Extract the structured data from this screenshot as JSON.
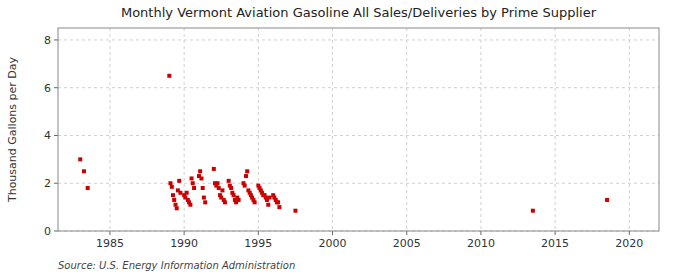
{
  "chart_data": {
    "type": "scatter",
    "title": "Monthly Vermont Aviation Gasoline All Sales/Deliveries by Prime Supplier",
    "ylabel": "Thousand Gallons per Day",
    "annotations": [
      "Source: U.S. Energy Information Administration"
    ],
    "color": "#cc0000",
    "marker": "square",
    "grid": true,
    "xlim": [
      1981.5,
      2022
    ],
    "ylim": [
      0,
      8.5
    ],
    "xticks": [
      1985,
      1990,
      1995,
      2000,
      2005,
      2010,
      2015,
      2020
    ],
    "yticks": [
      0,
      2,
      4,
      6,
      8
    ],
    "x": [
      1983.0,
      1983.25,
      1983.5,
      1989.0,
      1989.08,
      1989.17,
      1989.25,
      1989.33,
      1989.42,
      1989.5,
      1989.58,
      1989.67,
      1989.75,
      1990.0,
      1990.08,
      1990.17,
      1990.25,
      1990.33,
      1990.42,
      1990.5,
      1990.58,
      1990.67,
      1991.0,
      1991.08,
      1991.17,
      1991.25,
      1991.33,
      1991.42,
      1992.0,
      1992.08,
      1992.17,
      1992.25,
      1992.33,
      1992.42,
      1992.5,
      1992.58,
      1992.67,
      1992.75,
      1993.0,
      1993.08,
      1993.17,
      1993.25,
      1993.33,
      1993.42,
      1993.5,
      1993.58,
      1993.67,
      1994.0,
      1994.08,
      1994.17,
      1994.25,
      1994.33,
      1994.42,
      1994.5,
      1994.58,
      1994.67,
      1994.75,
      1995.0,
      1995.08,
      1995.17,
      1995.25,
      1995.33,
      1995.42,
      1995.5,
      1995.58,
      1995.67,
      1995.75,
      1996.0,
      1996.08,
      1996.17,
      1996.25,
      1996.33,
      1996.42,
      1997.5,
      2013.5,
      2018.5
    ],
    "values": [
      3.0,
      2.5,
      1.8,
      6.5,
      2.0,
      1.85,
      1.5,
      1.3,
      1.1,
      0.95,
      1.7,
      2.1,
      1.6,
      1.5,
      1.4,
      1.6,
      1.3,
      1.2,
      1.1,
      2.2,
      2.0,
      1.8,
      2.3,
      2.5,
      2.2,
      1.8,
      1.4,
      1.2,
      2.6,
      2.0,
      1.9,
      2.0,
      1.8,
      1.5,
      1.4,
      1.7,
      1.3,
      1.2,
      2.1,
      1.9,
      1.8,
      1.6,
      1.5,
      1.3,
      1.2,
      1.4,
      1.3,
      2.0,
      1.9,
      2.3,
      2.5,
      1.7,
      1.6,
      1.5,
      1.4,
      1.3,
      1.2,
      1.9,
      1.8,
      1.7,
      1.6,
      1.5,
      1.5,
      1.4,
      1.3,
      1.1,
      1.4,
      1.5,
      1.4,
      1.3,
      1.2,
      1.2,
      1.0,
      0.85,
      0.85,
      1.3
    ]
  }
}
